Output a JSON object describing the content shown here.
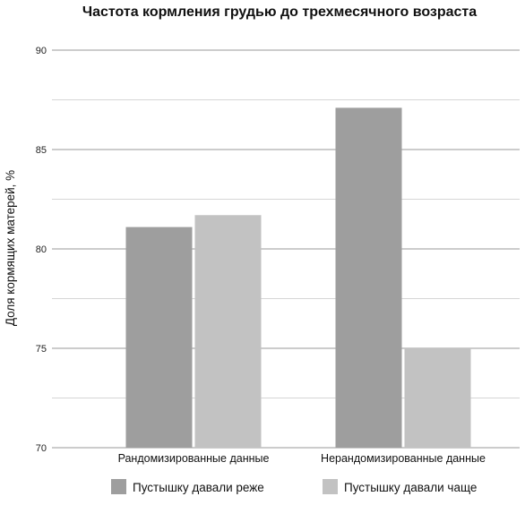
{
  "chart_data": {
    "type": "bar",
    "title": "Частота кормления грудью до трехмесячного возраста",
    "xlabel": "",
    "ylabel": "Доля кормящих матерей, %",
    "ylim": [
      70,
      90
    ],
    "yticks": [
      70,
      75,
      80,
      85,
      90
    ],
    "grid": true,
    "legend_position": "bottom",
    "categories": [
      "Рандомизированные данные",
      "Нерандомизированные данные"
    ],
    "series": [
      {
        "name": "Пустышку давали реже",
        "color": "#9e9e9e",
        "values": [
          81.1,
          87.1
        ]
      },
      {
        "name": "Пустышку давали чаще",
        "color": "#c2c2c2",
        "values": [
          81.7,
          75.0
        ]
      }
    ]
  }
}
